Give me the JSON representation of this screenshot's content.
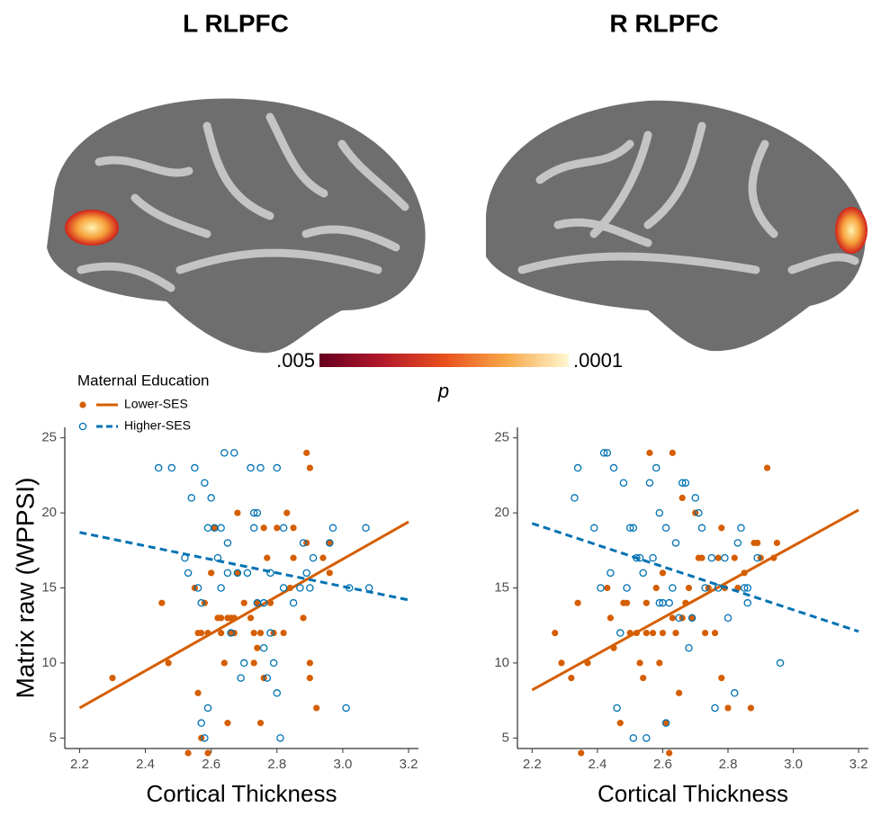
{
  "chart_data": [
    {
      "type": "scatter",
      "title": "L RLPFC",
      "xlabel": "Cortical Thickness",
      "ylabel": "Matrix raw (WPPSI)",
      "legend_title": "Maternal Education",
      "xlim": [
        2.155,
        3.23
      ],
      "ylim": [
        4.3,
        25.7
      ],
      "xticks": [
        2.2,
        2.4,
        2.6,
        2.8,
        {
          "value": 3,
          "label": "3.0"
        },
        3.2
      ],
      "yticks": [
        5,
        10,
        15,
        20,
        25
      ],
      "series": [
        {
          "name": "Lower-SES",
          "color": "#d55e00",
          "filled": true,
          "dashed": false,
          "x": [
            2.3,
            2.45,
            2.47,
            2.53,
            2.55,
            2.56,
            2.56,
            2.57,
            2.57,
            2.58,
            2.59,
            2.59,
            2.6,
            2.61,
            2.62,
            2.63,
            2.63,
            2.64,
            2.65,
            2.65,
            2.66,
            2.66,
            2.67,
            2.67,
            2.68,
            2.68,
            2.7,
            2.72,
            2.73,
            2.73,
            2.74,
            2.74,
            2.75,
            2.75,
            2.76,
            2.76,
            2.77,
            2.78,
            2.79,
            2.8,
            2.82,
            2.83,
            2.84,
            2.85,
            2.85,
            2.88,
            2.89,
            2.89,
            2.9,
            2.9,
            2.9,
            2.92,
            2.94,
            2.96,
            2.96
          ],
          "y": [
            9,
            14,
            10,
            4,
            15,
            12,
            8,
            12,
            5,
            14,
            4,
            12,
            16,
            19,
            13,
            12,
            13,
            10,
            13,
            6,
            12,
            13,
            13,
            12,
            20,
            16,
            14,
            13,
            10,
            12,
            14,
            11,
            6,
            12,
            19,
            9,
            17,
            14,
            12,
            19,
            12,
            20,
            15,
            17,
            19,
            13,
            24,
            18,
            23,
            10,
            9,
            7,
            17,
            18,
            16
          ],
          "fit": {
            "x": [
              2.2,
              3.2
            ],
            "y": [
              7,
              19.4
            ]
          }
        },
        {
          "name": "Higher-SES",
          "color": "#0072b2",
          "filled": false,
          "dashed": true,
          "x": [
            2.44,
            2.48,
            2.52,
            2.53,
            2.54,
            2.55,
            2.56,
            2.57,
            2.57,
            2.58,
            2.58,
            2.59,
            2.59,
            2.6,
            2.61,
            2.62,
            2.63,
            2.63,
            2.64,
            2.65,
            2.65,
            2.66,
            2.67,
            2.68,
            2.69,
            2.7,
            2.71,
            2.72,
            2.73,
            2.73,
            2.74,
            2.74,
            2.75,
            2.76,
            2.76,
            2.77,
            2.78,
            2.78,
            2.79,
            2.8,
            2.8,
            2.81,
            2.82,
            2.82,
            2.85,
            2.87,
            2.88,
            2.89,
            2.9,
            2.91,
            2.96,
            2.97,
            3.01,
            3.02,
            3.07,
            3.08
          ],
          "y": [
            23,
            23,
            17,
            16,
            21,
            23,
            15,
            14,
            6,
            22,
            5,
            7,
            19,
            21,
            19,
            17,
            19,
            15,
            24,
            18,
            16,
            12,
            24,
            16,
            9,
            10,
            16,
            23,
            19,
            20,
            14,
            20,
            23,
            11,
            14,
            9,
            16,
            12,
            10,
            8,
            23,
            5,
            19,
            15,
            14,
            15,
            18,
            16,
            15,
            17,
            18,
            19,
            7,
            15,
            19,
            15
          ],
          "fit": {
            "x": [
              2.2,
              3.2
            ],
            "y": [
              18.7,
              14.2
            ]
          }
        }
      ]
    },
    {
      "type": "scatter",
      "title": "R RLPFC",
      "xlabel": "Cortical Thickness",
      "xlim": [
        2.155,
        3.23
      ],
      "ylim": [
        4.3,
        25.7
      ],
      "xticks": [
        2.2,
        2.4,
        2.6,
        2.8,
        {
          "value": 3,
          "label": "3.0"
        },
        3.2
      ],
      "yticks": [
        5,
        10,
        15,
        20,
        25
      ],
      "series": [
        {
          "color": "#d55e00",
          "filled": true,
          "dashed": false,
          "x": [
            2.27,
            2.29,
            2.32,
            2.34,
            2.35,
            2.37,
            2.43,
            2.44,
            2.45,
            2.47,
            2.48,
            2.49,
            2.5,
            2.52,
            2.53,
            2.54,
            2.55,
            2.55,
            2.56,
            2.57,
            2.58,
            2.59,
            2.6,
            2.6,
            2.61,
            2.62,
            2.63,
            2.63,
            2.64,
            2.65,
            2.66,
            2.66,
            2.67,
            2.68,
            2.69,
            2.7,
            2.71,
            2.72,
            2.73,
            2.74,
            2.76,
            2.77,
            2.78,
            2.78,
            2.79,
            2.8,
            2.82,
            2.83,
            2.85,
            2.87,
            2.88,
            2.89,
            2.9,
            2.92,
            2.94,
            2.95
          ],
          "y": [
            12,
            10,
            9,
            14,
            4,
            10,
            15,
            13,
            11,
            6,
            14,
            14,
            12,
            12,
            10,
            9,
            12,
            14,
            24,
            12,
            15,
            10,
            16,
            12,
            6,
            4,
            13,
            24,
            12,
            8,
            21,
            13,
            14,
            15,
            13,
            20,
            17,
            17,
            12,
            15,
            12,
            17,
            19,
            9,
            15,
            7,
            17,
            15,
            16,
            7,
            18,
            18,
            17,
            23,
            17,
            18
          ],
          "fit": {
            "x": [
              2.2,
              3.2
            ],
            "y": [
              8.2,
              20.2
            ]
          }
        },
        {
          "color": "#0072b2",
          "filled": false,
          "dashed": true,
          "x": [
            2.33,
            2.34,
            2.39,
            2.41,
            2.42,
            2.43,
            2.44,
            2.45,
            2.46,
            2.47,
            2.48,
            2.49,
            2.5,
            2.51,
            2.51,
            2.52,
            2.53,
            2.54,
            2.55,
            2.56,
            2.57,
            2.58,
            2.59,
            2.59,
            2.6,
            2.61,
            2.61,
            2.62,
            2.63,
            2.64,
            2.65,
            2.66,
            2.67,
            2.68,
            2.69,
            2.7,
            2.71,
            2.72,
            2.73,
            2.75,
            2.76,
            2.77,
            2.79,
            2.8,
            2.82,
            2.83,
            2.84,
            2.85,
            2.86,
            2.86,
            2.89,
            2.96
          ],
          "y": [
            21,
            23,
            19,
            15,
            24,
            24,
            16,
            23,
            7,
            12,
            22,
            15,
            19,
            5,
            19,
            17,
            17,
            16,
            5,
            22,
            17,
            23,
            20,
            14,
            14,
            6,
            19,
            14,
            15,
            18,
            13,
            22,
            22,
            11,
            13,
            21,
            20,
            19,
            15,
            17,
            7,
            15,
            17,
            13,
            8,
            18,
            19,
            15,
            14,
            15,
            17,
            10
          ],
          "fit": {
            "x": [
              2.2,
              3.2
            ],
            "y": [
              19.3,
              12.1
            ]
          }
        }
      ]
    }
  ],
  "colorbar": {
    "ticks": [
      {
        "value": 0.005,
        "label": ".005"
      },
      {
        "value": 0.0001,
        "label": ".0001"
      }
    ],
    "label": "p",
    "colors": [
      "#67001f",
      "#b2182b",
      "#e8501c",
      "#f7a84a",
      "#fff7d0"
    ]
  }
}
